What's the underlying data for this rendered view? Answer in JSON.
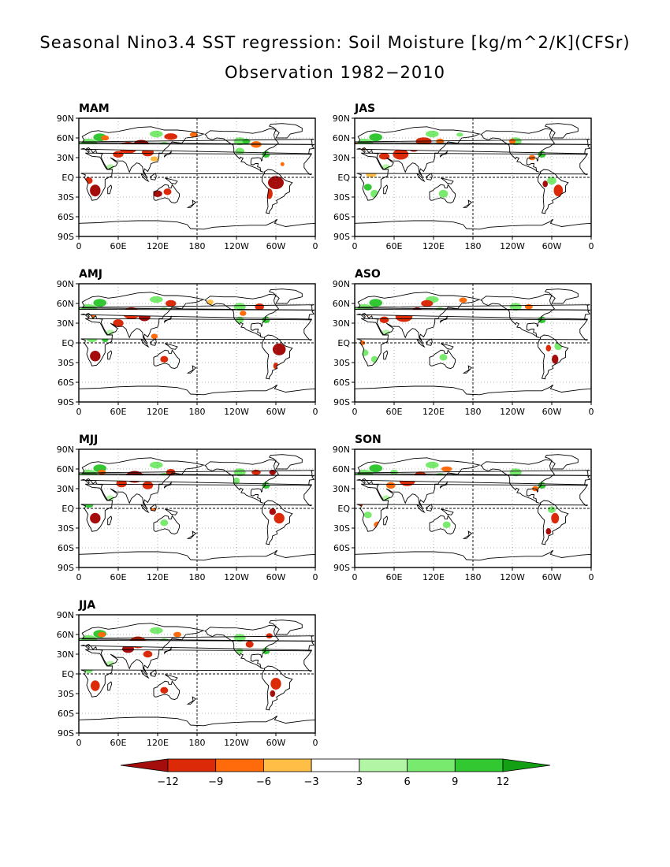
{
  "title": {
    "line1": "Seasonal Nino3.4 SST regression: Soil Moisture [kg/m^2/K](CFSr)",
    "line2": "Observation 1982−2010"
  },
  "axes": {
    "lat_labels": [
      "90N",
      "60N",
      "30N",
      "EQ",
      "30S",
      "60S",
      "90S"
    ],
    "lon_labels": [
      "0",
      "60E",
      "120E",
      "180",
      "120W",
      "60W",
      "0"
    ]
  },
  "panels": [
    {
      "label": "MAM"
    },
    {
      "label": "JAS"
    },
    {
      "label": "AMJ"
    },
    {
      "label": "ASO"
    },
    {
      "label": "MJJ"
    },
    {
      "label": "SON"
    },
    {
      "label": "JJA"
    }
  ],
  "colorbar": {
    "colors": [
      "#a50c0c",
      "#dc2a08",
      "#ff6a0a",
      "#ffbe46",
      "#ffffff",
      "#b2f5a4",
      "#78ea6e",
      "#32c832",
      "#14a014"
    ],
    "labels": [
      "−12",
      "−9",
      "−6",
      "−3",
      "3",
      "6",
      "9",
      "12"
    ]
  },
  "colors": {
    "dry_strong": "#a50c0c",
    "dry": "#dc2a08",
    "dry_moderate": "#ff6a0a",
    "dry_weak": "#ffbe46",
    "wet_weak": "#b2f5a4",
    "wet": "#78ea6e",
    "wet_strong": "#32c832"
  }
}
